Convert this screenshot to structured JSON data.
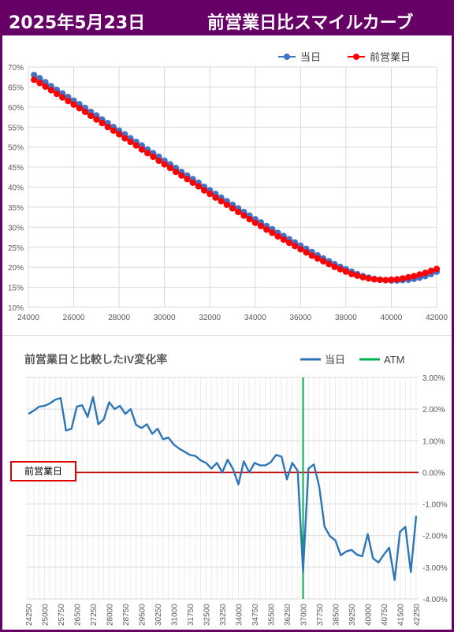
{
  "header": {
    "date": "2025年5月23日",
    "title": "前営業日比スマイルカーブ",
    "bg_color": "#660066"
  },
  "chart_data": [
    {
      "type": "line",
      "title": "",
      "xlabel": "",
      "ylabel": "",
      "x": [
        24250,
        24500,
        24750,
        25000,
        25250,
        25500,
        25750,
        26000,
        26250,
        26500,
        26750,
        27000,
        27250,
        27500,
        27750,
        28000,
        28250,
        28500,
        28750,
        29000,
        29250,
        29500,
        29750,
        30000,
        30250,
        30500,
        30750,
        31000,
        31250,
        31500,
        31750,
        32000,
        32250,
        32500,
        32750,
        33000,
        33250,
        33500,
        33750,
        34000,
        34250,
        34500,
        34750,
        35000,
        35250,
        35500,
        35750,
        36000,
        36250,
        36500,
        36750,
        37000,
        37250,
        37500,
        37750,
        38000,
        38250,
        38500,
        38750,
        39000,
        39250,
        39500,
        39750,
        40000,
        40250,
        40500,
        40750,
        41000,
        41250,
        41500,
        41750,
        42000
      ],
      "series": [
        {
          "name": "当日",
          "color": "#4472c4",
          "values": [
            68.0,
            67.2,
            66.2,
            65.2,
            64.3,
            63.4,
            62.5,
            61.6,
            60.7,
            59.8,
            58.8,
            57.9,
            56.9,
            56.0,
            55.0,
            54.1,
            53.2,
            52.2,
            51.3,
            50.4,
            49.4,
            48.5,
            47.6,
            46.6,
            45.7,
            44.8,
            43.8,
            42.9,
            42.0,
            41.1,
            40.1,
            39.2,
            38.3,
            37.4,
            36.5,
            35.6,
            34.7,
            33.8,
            32.9,
            32.0,
            31.2,
            30.3,
            29.5,
            28.6,
            27.8,
            27.0,
            26.2,
            25.4,
            24.6,
            23.8,
            23.0,
            22.2,
            21.5,
            20.8,
            20.1,
            19.5,
            18.9,
            18.3,
            17.8,
            17.4,
            17.1,
            16.9,
            16.8,
            16.7,
            16.7,
            16.8,
            16.9,
            17.1,
            17.4,
            17.8,
            18.3,
            18.9
          ]
        },
        {
          "name": "前営業日",
          "color": "#ff0000",
          "values": [
            66.8,
            66.0,
            65.1,
            64.2,
            63.3,
            62.4,
            61.5,
            60.6,
            59.7,
            58.8,
            57.8,
            56.9,
            56.0,
            55.0,
            54.1,
            53.2,
            52.2,
            51.3,
            50.4,
            49.4,
            48.5,
            47.6,
            46.6,
            45.7,
            44.8,
            43.8,
            42.9,
            42.0,
            41.1,
            40.2,
            39.2,
            38.3,
            37.4,
            36.5,
            35.6,
            34.7,
            33.8,
            32.9,
            32.0,
            31.1,
            30.3,
            29.4,
            28.6,
            27.7,
            26.9,
            26.1,
            25.3,
            24.5,
            23.7,
            22.9,
            22.2,
            21.5,
            20.8,
            20.1,
            19.5,
            18.9,
            18.3,
            17.9,
            17.5,
            17.2,
            17.0,
            16.9,
            16.8,
            16.9,
            17.0,
            17.2,
            17.5,
            17.8,
            18.2,
            18.6,
            19.1,
            19.6
          ]
        }
      ],
      "xlim": [
        24000,
        42000
      ],
      "xticks": [
        24000,
        26000,
        28000,
        30000,
        32000,
        34000,
        36000,
        38000,
        40000,
        42000
      ],
      "xtick_labels": [
        "24000",
        "26000",
        "28000",
        "30000",
        "32000",
        "34000",
        "36000",
        "38000",
        "40000",
        "42000"
      ],
      "ylim": [
        10,
        70
      ],
      "yticks": [
        10,
        15,
        20,
        25,
        30,
        35,
        40,
        45,
        50,
        55,
        60,
        65,
        70
      ],
      "ytick_labels": [
        "10%",
        "15%",
        "20%",
        "25%",
        "30%",
        "35%",
        "40%",
        "45%",
        "50%",
        "55%",
        "60%",
        "65%",
        "70%"
      ],
      "legend": "top-right",
      "grid": true
    },
    {
      "type": "line",
      "title": "前営業日と比較したIV変化率",
      "xlabel": "",
      "ylabel": "",
      "categories": [
        "24250",
        "24500",
        "24750",
        "25000",
        "25250",
        "25500",
        "25750",
        "26000",
        "26250",
        "26500",
        "26750",
        "27000",
        "27250",
        "27500",
        "27750",
        "28000",
        "28250",
        "28500",
        "28750",
        "29000",
        "29250",
        "29500",
        "29750",
        "30000",
        "30250",
        "30500",
        "30750",
        "31000",
        "31250",
        "31500",
        "31750",
        "32000",
        "32250",
        "32500",
        "32750",
        "33000",
        "33250",
        "33500",
        "33750",
        "34000",
        "34250",
        "34500",
        "34750",
        "35000",
        "35250",
        "35500",
        "35750",
        "36000",
        "36250",
        "36500",
        "36750",
        "37000",
        "37250",
        "37500",
        "37750",
        "38000",
        "38250",
        "38500",
        "38750",
        "39000",
        "39250",
        "39500",
        "39750",
        "40000",
        "40250",
        "40500",
        "40750",
        "41000",
        "41250",
        "41500",
        "41750",
        "42000",
        "42250"
      ],
      "tick_every": 3,
      "series": [
        {
          "name": "当日",
          "color": "#2e75b6",
          "values": [
            1.85,
            1.95,
            2.08,
            2.1,
            2.18,
            2.3,
            2.35,
            1.32,
            1.38,
            2.08,
            2.12,
            1.75,
            2.38,
            1.52,
            1.68,
            2.22,
            2.0,
            2.1,
            1.85,
            2.0,
            1.5,
            1.4,
            1.52,
            1.22,
            1.38,
            1.05,
            1.1,
            0.88,
            0.75,
            0.65,
            0.55,
            0.52,
            0.38,
            0.3,
            0.12,
            0.3,
            0.0,
            0.4,
            0.1,
            -0.38,
            0.35,
            0.0,
            0.3,
            0.22,
            0.22,
            0.32,
            0.55,
            0.5,
            -0.22,
            0.3,
            0.05,
            -3.15,
            0.12,
            0.25,
            -0.45,
            -1.72,
            -2.02,
            -2.15,
            -2.62,
            -2.5,
            -2.45,
            -2.6,
            -2.65,
            -1.95,
            -2.72,
            -2.85,
            -2.6,
            -2.38,
            -3.4,
            -1.88,
            -1.72,
            -3.15,
            -1.38
          ]
        },
        {
          "name": "ATM",
          "color": "#00b050",
          "marker_at": "37000"
        }
      ],
      "ylim": [
        -4,
        3
      ],
      "yticks": [
        -4,
        -3,
        -2,
        -1,
        0,
        1,
        2,
        3
      ],
      "ytick_labels": [
        "-4.00%",
        "-3.00%",
        "-2.00%",
        "-1.00%",
        "0.00%",
        "1.00%",
        "2.00%",
        "3.00%"
      ],
      "zero_line_color": "#c00000",
      "annotation": "前営業日",
      "legend": "top-right",
      "grid": true
    }
  ]
}
